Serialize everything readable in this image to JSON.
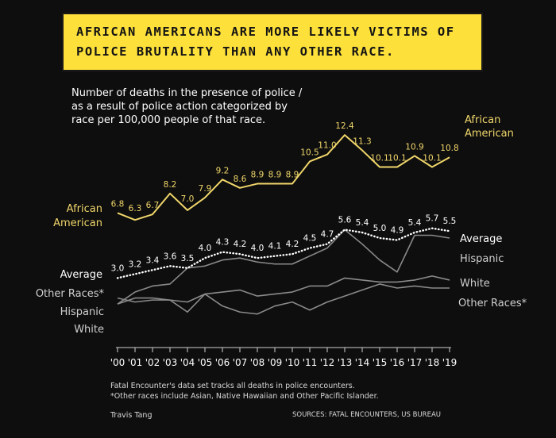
{
  "banner": {
    "line1": "AFRICAN AMERICANS ARE MORE LIKELY VICTIMS OF",
    "line2": "POLICE BRUTALITY THAN ANY OTHER RACE."
  },
  "subtitle": "Number of deaths in the presence of police / as a result of police action categorized by race per 100,000 people of that race.",
  "notes": {
    "line1": "Fatal Encounter's data set tracks all deaths in police encounters.",
    "line2": "*Other races include Asian, Native Hawaiian and Other Pacific Islander."
  },
  "author": "Travis Tang",
  "source": "SOURCES: FATAL ENCOUNTERS, US BUREAU",
  "colors": {
    "background": "#0e0e0e",
    "banner": "#fde03a",
    "african_american": "#f0d66a",
    "average": "#ffffff",
    "other_series": "#8a8a8a"
  },
  "chart_data": {
    "type": "line",
    "x": [
      "'00",
      "'01",
      "'02",
      "'03",
      "'04",
      "'05",
      "'06",
      "'07",
      "'08",
      "'09",
      "'10",
      "'11",
      "'12",
      "'13",
      "'14",
      "'15",
      "'16",
      "'17",
      "'18",
      "'19"
    ],
    "ylim": [
      0,
      13
    ],
    "grid": false,
    "series": [
      {
        "name": "African American",
        "label_left": [
          "African",
          "American"
        ],
        "label_right": [
          "African",
          "American"
        ],
        "color": "#f0d66a",
        "style": "solid",
        "show_labels": true,
        "values": [
          6.8,
          6.3,
          6.7,
          8.2,
          7.0,
          7.9,
          9.2,
          8.6,
          8.9,
          8.9,
          8.9,
          10.5,
          11.0,
          12.4,
          11.3,
          10.1,
          10.1,
          10.9,
          10.1,
          10.8
        ]
      },
      {
        "name": "Average",
        "label_left": [
          "Average"
        ],
        "label_right": [
          "Average"
        ],
        "color": "#ffffff",
        "style": "dotted",
        "show_labels": true,
        "values": [
          3.0,
          3.2,
          3.4,
          3.6,
          3.5,
          4.0,
          4.3,
          4.2,
          4.0,
          4.1,
          4.2,
          4.5,
          4.7,
          5.6,
          5.4,
          5.0,
          4.9,
          5.4,
          5.7,
          5.5
        ]
      },
      {
        "name": "Hispanic",
        "label_left": [
          "Hispanic"
        ],
        "label_right": [
          "Hispanic"
        ],
        "color": "#8a8a8a",
        "style": "solid",
        "show_labels": false,
        "values": [
          1.7,
          2.3,
          2.6,
          2.7,
          3.5,
          3.6,
          3.9,
          4.0,
          3.8,
          3.7,
          3.7,
          4.1,
          4.5,
          5.6,
          4.7,
          3.9,
          3.3,
          5.2,
          5.2,
          5.0
        ]
      },
      {
        "name": "Other Races*",
        "label_left": [
          "Other Races*"
        ],
        "label_right": [
          "Other Races*"
        ],
        "color": "#8a8a8a",
        "style": "solid",
        "show_labels": false,
        "values": [
          1.7,
          2.0,
          2.0,
          1.9,
          1.8,
          2.2,
          2.3,
          2.4,
          2.1,
          2.2,
          2.3,
          2.6,
          2.6,
          3.0,
          2.9,
          2.8,
          2.8,
          2.9,
          3.1,
          2.9
        ]
      },
      {
        "name": "White",
        "label_left": [
          "White"
        ],
        "label_right": [
          "White"
        ],
        "color": "#8a8a8a",
        "style": "solid",
        "show_labels": false,
        "values": [
          2.0,
          1.8,
          1.9,
          1.9,
          1.3,
          2.2,
          1.6,
          1.3,
          1.2,
          1.6,
          1.8,
          1.4,
          1.8,
          2.1,
          2.4,
          2.7,
          2.5,
          2.6,
          2.5,
          2.5
        ]
      }
    ]
  }
}
